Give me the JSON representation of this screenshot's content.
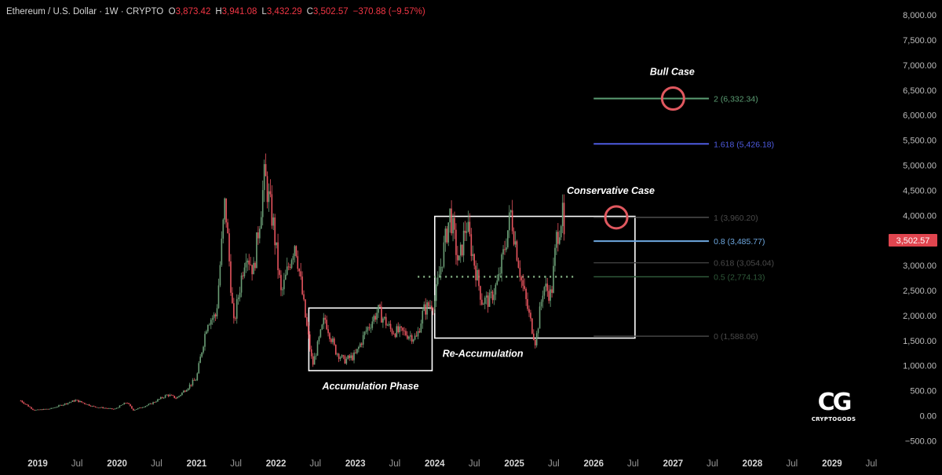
{
  "header": {
    "symbol": "Ethereum / U.S. Dollar · 1W · CRYPTO",
    "o_label": "O",
    "o_value": "3,873.42",
    "h_label": "H",
    "h_value": "3,941.08",
    "l_label": "L",
    "l_value": "3,432.29",
    "c_label": "C",
    "c_value": "3,502.57",
    "change": "−370.88 (−9.57%)"
  },
  "colors": {
    "background": "#000000",
    "up_candle": "#6b9e76",
    "down_candle": "#e8555f",
    "fib_2": "#5c9e74",
    "fib_1618": "#4e5be0",
    "fib_1": "#555555",
    "fib_08": "#6ea8e0",
    "fib_0618": "#3f3f3f",
    "fib_05": "#2f5a3a",
    "fib_0": "#4a4a4a",
    "target_circle": "#e0585f",
    "price_tag": "#e0454f"
  },
  "logo": {
    "mark": "CG",
    "text": "CRYPTOGODS"
  },
  "chart_data": {
    "type": "candlestick",
    "title": "Ethereum / U.S. Dollar · 1W · CRYPTO",
    "y_axis": {
      "ylim": [
        -500,
        8000
      ],
      "ticks": [
        "8,000.00",
        "7,500.00",
        "7,000.00",
        "6,500.00",
        "6,000.00",
        "5,500.00",
        "5,000.00",
        "4,500.00",
        "4,000.00",
        "3,500.00",
        "3,000.00",
        "2,500.00",
        "2,000.00",
        "1,500.00",
        "1,000.00",
        "500.00",
        "0.00",
        "−500.00"
      ],
      "tick_values": [
        8000,
        7500,
        7000,
        6500,
        6000,
        5500,
        5000,
        4500,
        4000,
        3500,
        3000,
        2500,
        2000,
        1500,
        1000,
        500,
        0,
        -500
      ]
    },
    "x_axis": {
      "ticks": [
        {
          "label": "2019",
          "date": "2019-01-01"
        },
        {
          "label": "Jul",
          "date": "2019-07-01"
        },
        {
          "label": "2020",
          "date": "2020-01-01"
        },
        {
          "label": "Jul",
          "date": "2020-07-01"
        },
        {
          "label": "2021",
          "date": "2021-01-01"
        },
        {
          "label": "Jul",
          "date": "2021-07-01"
        },
        {
          "label": "2022",
          "date": "2022-01-01"
        },
        {
          "label": "Jul",
          "date": "2022-07-01"
        },
        {
          "label": "2023",
          "date": "2023-01-01"
        },
        {
          "label": "Jul",
          "date": "2023-07-01"
        },
        {
          "label": "2024",
          "date": "2024-01-01"
        },
        {
          "label": "Jul",
          "date": "2024-07-01"
        },
        {
          "label": "2025",
          "date": "2025-01-01"
        },
        {
          "label": "Jul",
          "date": "2025-07-01"
        },
        {
          "label": "2026",
          "date": "2026-01-01"
        },
        {
          "label": "Jul",
          "date": "2026-07-01"
        },
        {
          "label": "2027",
          "date": "2027-01-01"
        },
        {
          "label": "Jul",
          "date": "2027-07-01"
        },
        {
          "label": "2028",
          "date": "2028-01-01"
        },
        {
          "label": "Jul",
          "date": "2028-07-01"
        },
        {
          "label": "2029",
          "date": "2029-01-01"
        },
        {
          "label": "Jul",
          "date": "2029-07-01"
        }
      ]
    },
    "price_path": [
      [
        "2018-10-15",
        300
      ],
      [
        "2018-12-15",
        110
      ],
      [
        "2019-03-01",
        140
      ],
      [
        "2019-06-25",
        310
      ],
      [
        "2019-09-15",
        180
      ],
      [
        "2019-12-20",
        130
      ],
      [
        "2020-02-15",
        270
      ],
      [
        "2020-03-15",
        110
      ],
      [
        "2020-06-01",
        230
      ],
      [
        "2020-08-20",
        420
      ],
      [
        "2020-10-01",
        350
      ],
      [
        "2020-12-31",
        740
      ],
      [
        "2021-02-20",
        1900
      ],
      [
        "2021-04-01",
        2000
      ],
      [
        "2021-05-12",
        4300
      ],
      [
        "2021-06-20",
        1800
      ],
      [
        "2021-08-15",
        3300
      ],
      [
        "2021-09-20",
        2900
      ],
      [
        "2021-11-10",
        4800
      ],
      [
        "2021-12-20",
        3800
      ],
      [
        "2022-01-25",
        2400
      ],
      [
        "2022-03-30",
        3500
      ],
      [
        "2022-05-15",
        2000
      ],
      [
        "2022-06-18",
        1000
      ],
      [
        "2022-08-13",
        1950
      ],
      [
        "2022-10-01",
        1300
      ],
      [
        "2022-11-10",
        1100
      ],
      [
        "2022-12-31",
        1200
      ],
      [
        "2023-02-20",
        1700
      ],
      [
        "2023-04-15",
        2100
      ],
      [
        "2023-06-15",
        1700
      ],
      [
        "2023-08-15",
        1650
      ],
      [
        "2023-10-10",
        1550
      ],
      [
        "2023-11-10",
        2100
      ],
      [
        "2024-01-01",
        2300
      ],
      [
        "2024-03-12",
        4050
      ],
      [
        "2024-04-20",
        3000
      ],
      [
        "2024-05-25",
        3850
      ],
      [
        "2024-08-05",
        2300
      ],
      [
        "2024-09-10",
        2300
      ],
      [
        "2024-10-20",
        2700
      ],
      [
        "2024-11-15",
        3300
      ],
      [
        "2024-12-16",
        4050
      ],
      [
        "2025-02-03",
        2700
      ],
      [
        "2025-03-10",
        2000
      ],
      [
        "2025-04-09",
        1450
      ],
      [
        "2025-05-15",
        2600
      ],
      [
        "2025-06-20",
        2400
      ],
      [
        "2025-07-14",
        3550
      ],
      [
        "2025-08-10",
        4050
      ],
      [
        "2025-08-18",
        3500
      ]
    ],
    "series": [
      {
        "name": "2 (6,332.34)",
        "level": 6332.34,
        "start": "2026-01-01",
        "end": "2027-06-15"
      },
      {
        "name": "1.618 (5,426.18)",
        "level": 5426.18,
        "start": "2026-01-01",
        "end": "2027-06-15"
      },
      {
        "name": "1 (3,960.20)",
        "level": 3960.2,
        "start": "2026-01-01",
        "end": "2027-06-15"
      },
      {
        "name": "0.8 (3,485.77)",
        "level": 3485.77,
        "start": "2026-01-01",
        "end": "2027-06-15"
      },
      {
        "name": "0.618 (3,054.04)",
        "level": 3054.04,
        "start": "2026-01-01",
        "end": "2027-06-15"
      },
      {
        "name": "0.5 (2,774.13)",
        "level": 2774.13,
        "start": "2026-01-01",
        "end": "2027-06-15"
      },
      {
        "name": "0 (1,588.06)",
        "level": 1588.06,
        "start": "2026-01-01",
        "end": "2027-06-15"
      }
    ],
    "zones": [
      {
        "label": "Accumulation Phase",
        "start": "2022-06-01",
        "end": "2023-12-20",
        "low": 900,
        "high": 2150
      },
      {
        "label": "Re-Accumulation",
        "start": "2024-01-01",
        "end": "2026-07-10",
        "low": 1550,
        "high": 3980
      }
    ],
    "dotted_line": {
      "level": 2774,
      "start": "2023-10-15",
      "end": "2025-10-01"
    },
    "annotations": [
      {
        "text": "Bull Case",
        "date": "2027-01-01",
        "price": 6332
      },
      {
        "text": "Conservative Case",
        "date": "2026-04-15",
        "price": 3960
      }
    ],
    "current_price": {
      "label": "3,502.57",
      "value": 3502.57
    }
  }
}
